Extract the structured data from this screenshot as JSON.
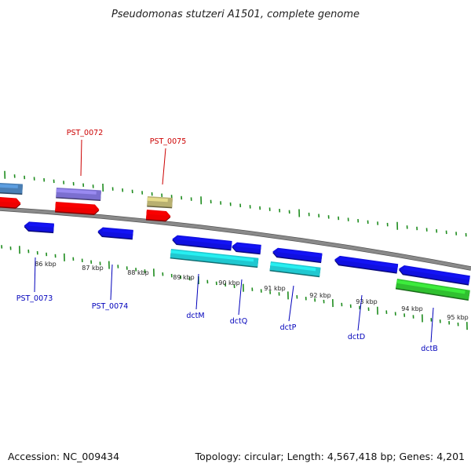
{
  "title": "Pseudomonas stutzeri A1501, complete genome",
  "footer": {
    "accession": "Accession: NC_009434",
    "topology": "Topology: circular; Length: 4,567,418 bp; Genes: 4,201"
  },
  "colors": {
    "backbone": "#8a8a8a",
    "ticks": "#1e8c1e",
    "label_red": "#cc0000",
    "label_blue": "#0000bb"
  },
  "ticks": [
    "86 kbp",
    "87 kbp",
    "88 kbp",
    "89 kbp",
    "90 kbp",
    "91 kbp",
    "92 kbp",
    "93 kbp",
    "94 kbp",
    "95 kbp"
  ],
  "genes_top": [
    {
      "label": "PST_0072",
      "color": "#cc0000"
    },
    {
      "label": "PST_0075",
      "color": "#cc0000"
    }
  ],
  "genes_bottom": [
    {
      "label": "PST_0073",
      "color": "#0000bb"
    },
    {
      "label": "PST_0074",
      "color": "#0000bb"
    },
    {
      "label": "dctM",
      "color": "#0000bb"
    },
    {
      "label": "dctQ",
      "color": "#0000bb"
    },
    {
      "label": "dctP",
      "color": "#0000bb"
    },
    {
      "label": "dctD",
      "color": "#0000bb"
    },
    {
      "label": "dctB",
      "color": "#0000bb"
    }
  ],
  "features": [
    {
      "name": "feature-steelblue-left",
      "color": "#4a7fb5"
    },
    {
      "name": "feature-purple-pst0072",
      "color": "#7b6fd0"
    },
    {
      "name": "feature-olive-pst0075",
      "color": "#b8b070"
    },
    {
      "name": "feature-red-left",
      "color": "#ee0000"
    },
    {
      "name": "feature-red-pst0072",
      "color": "#ee0000"
    },
    {
      "name": "feature-red-pst0075",
      "color": "#ee0000"
    },
    {
      "name": "feature-blue-pst0073",
      "color": "#1010e0"
    },
    {
      "name": "feature-blue-pst0074",
      "color": "#1010e0"
    },
    {
      "name": "feature-blue-dctm",
      "color": "#1010e0"
    },
    {
      "name": "feature-blue-dctq",
      "color": "#1010e0"
    },
    {
      "name": "feature-blue-dctp",
      "color": "#1010e0"
    },
    {
      "name": "feature-blue-dctd",
      "color": "#1010e0"
    },
    {
      "name": "feature-blue-dctb",
      "color": "#1010e0"
    },
    {
      "name": "feature-cyan-dctm",
      "color": "#20c8d0"
    },
    {
      "name": "feature-cyan-dctp",
      "color": "#20c8d0"
    },
    {
      "name": "feature-green-dctb",
      "color": "#30c030"
    }
  ]
}
